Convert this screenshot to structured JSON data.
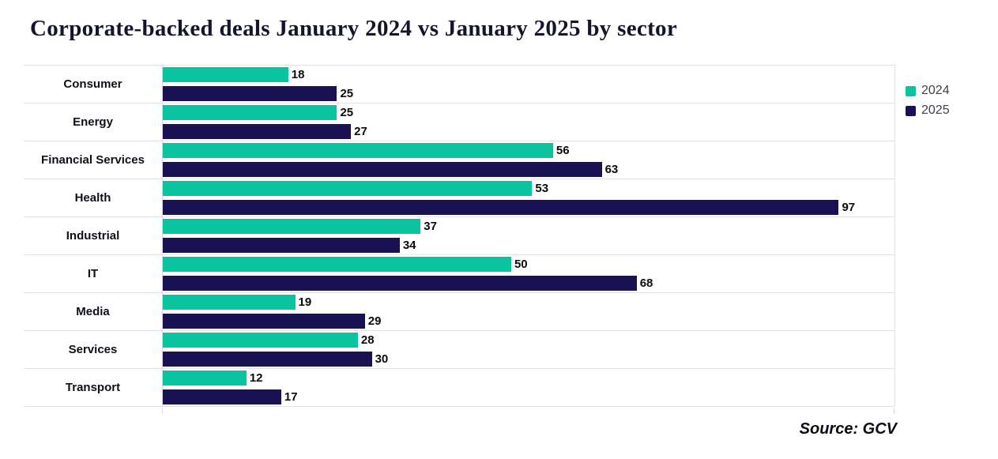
{
  "title": "Corporate-backed deals January 2024 vs January 2025 by sector",
  "source": "Source: GCV",
  "legend": [
    {
      "label": "2024",
      "color": "#0ac4a0"
    },
    {
      "label": "2025",
      "color": "#1a1054"
    }
  ],
  "colors": {
    "series_2024": "#0ac4a0",
    "series_2025": "#1a1054",
    "gridline": "#e3e3e3",
    "title_text": "#14142c",
    "value_text": "#0b0b0b",
    "legend_text": "#3f3f49",
    "background": "#ffffff"
  },
  "chart_data": {
    "type": "bar",
    "orientation": "horizontal",
    "title": "Corporate-backed deals January 2024 vs January 2025 by sector",
    "categories": [
      "Consumer",
      "Energy",
      "Financial Services",
      "Health",
      "Industrial",
      "IT",
      "Media",
      "Services",
      "Transport"
    ],
    "series": [
      {
        "name": "2024",
        "color": "#0ac4a0",
        "values": [
          18,
          25,
          56,
          53,
          37,
          50,
          19,
          28,
          12
        ]
      },
      {
        "name": "2025",
        "color": "#1a1054",
        "values": [
          25,
          27,
          63,
          97,
          34,
          68,
          29,
          30,
          17
        ]
      }
    ],
    "xlabel": "",
    "ylabel": "",
    "xlim": [
      0,
      105
    ],
    "grid": "horizontal band separators only, no value axis labels",
    "data_labels": "at end of each bar",
    "legend_position": "right"
  }
}
